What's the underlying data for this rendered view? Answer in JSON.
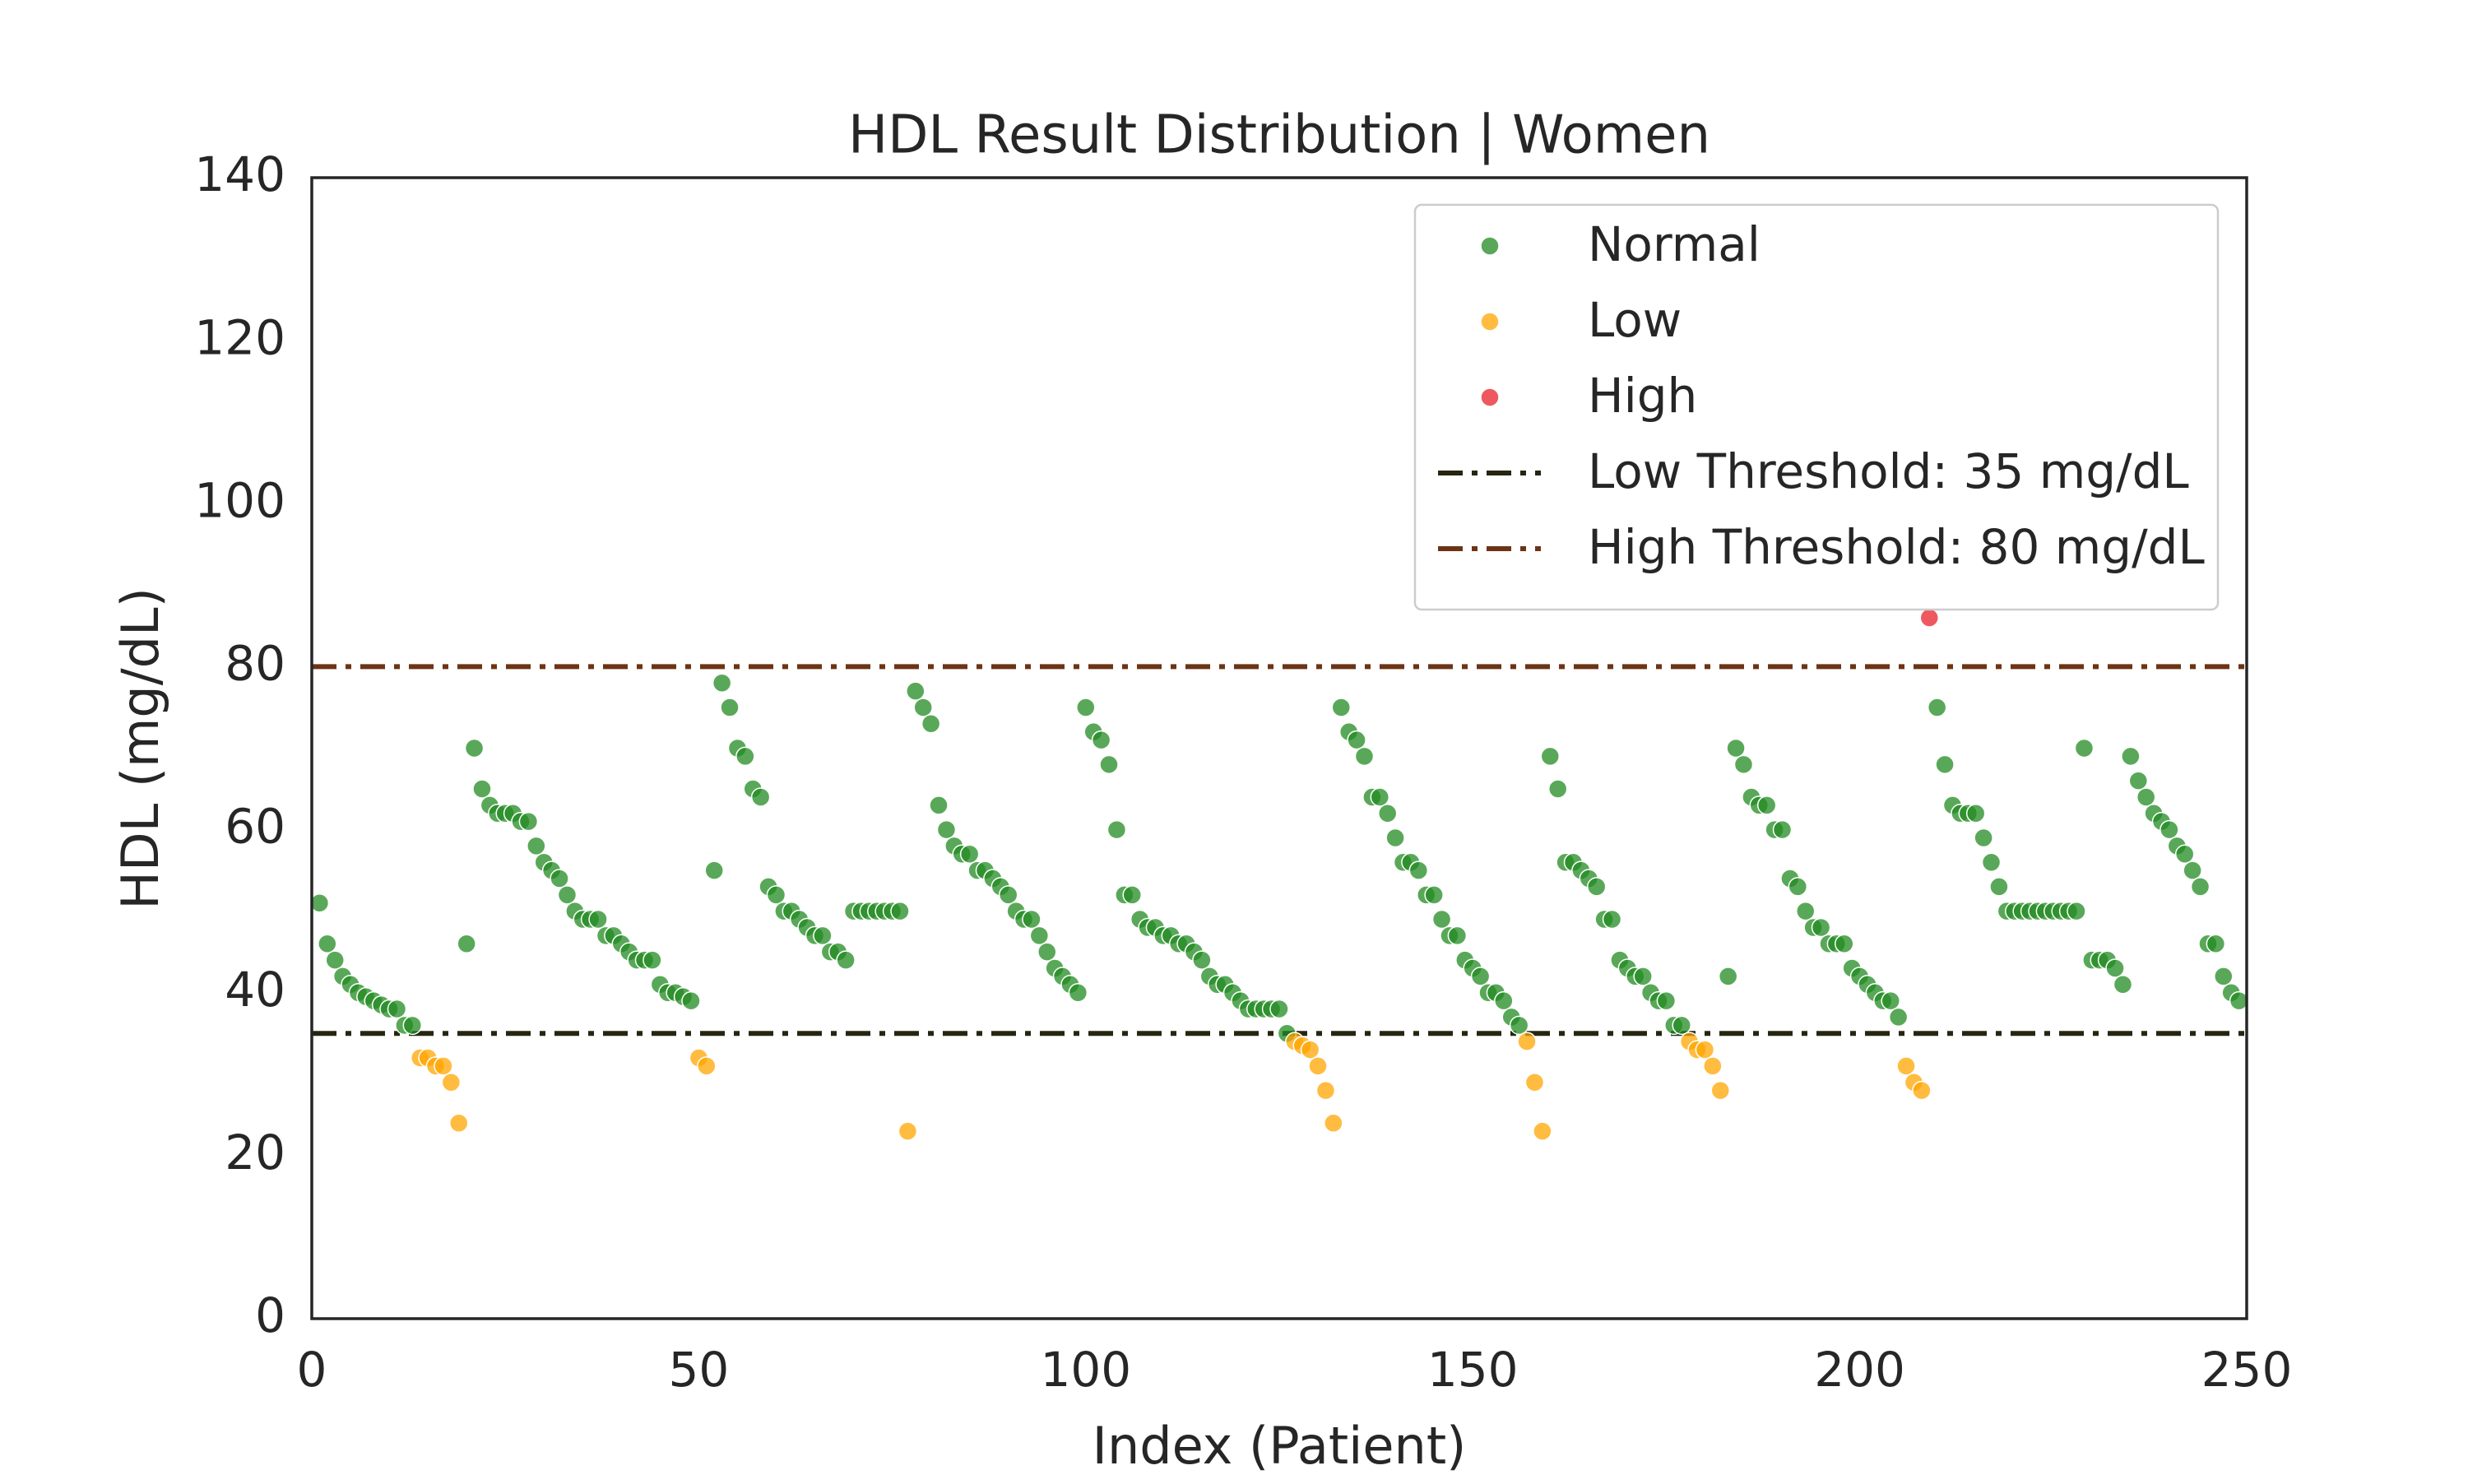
{
  "chart_data": {
    "type": "scatter",
    "title": "HDL Result Distribution | Women",
    "x_label": "Index (Patient)",
    "y_label": "HDL (mg/dL)",
    "xlim": [
      0,
      250
    ],
    "ylim": [
      0,
      140
    ],
    "xticks": [
      0,
      50,
      100,
      150,
      200,
      250
    ],
    "yticks": [
      0,
      20,
      40,
      60,
      80,
      100,
      120,
      140
    ],
    "grid": false,
    "legend": "upper right",
    "series": [
      {
        "name": "Normal",
        "color": "#228b22",
        "x": [
          1,
          2,
          3,
          4,
          5,
          6,
          7,
          8,
          9,
          10,
          11,
          12,
          13,
          20,
          21,
          22,
          23,
          24,
          25,
          26,
          27,
          28,
          29,
          30,
          31,
          32,
          33,
          34,
          35,
          36,
          37,
          38,
          39,
          40,
          41,
          42,
          43,
          44,
          45,
          46,
          47,
          48,
          49,
          52,
          53,
          54,
          55,
          56,
          57,
          58,
          59,
          60,
          61,
          62,
          63,
          64,
          65,
          66,
          67,
          68,
          69,
          70,
          71,
          72,
          73,
          74,
          75,
          76,
          78,
          79,
          80,
          81,
          82,
          83,
          84,
          85,
          86,
          87,
          88,
          89,
          90,
          91,
          92,
          93,
          94,
          95,
          96,
          97,
          98,
          99,
          100,
          101,
          102,
          103,
          104,
          105,
          106,
          107,
          108,
          109,
          110,
          111,
          112,
          113,
          114,
          115,
          116,
          117,
          118,
          119,
          120,
          121,
          122,
          123,
          124,
          125,
          126,
          133,
          134,
          135,
          136,
          137,
          138,
          139,
          140,
          141,
          142,
          143,
          144,
          145,
          146,
          147,
          148,
          149,
          150,
          151,
          152,
          153,
          154,
          155,
          156,
          160,
          161,
          162,
          163,
          164,
          165,
          166,
          167,
          168,
          169,
          170,
          171,
          172,
          173,
          174,
          175,
          176,
          177,
          183,
          184,
          185,
          186,
          187,
          188,
          189,
          190,
          191,
          192,
          193,
          194,
          195,
          196,
          197,
          198,
          199,
          200,
          201,
          202,
          203,
          204,
          205,
          210,
          211,
          212,
          213,
          214,
          215,
          216,
          217,
          218,
          219,
          220,
          221,
          222,
          223,
          224,
          225,
          226,
          227,
          228,
          229,
          230,
          231,
          232,
          233,
          234,
          235,
          236,
          237,
          238,
          239,
          240,
          241,
          242,
          243,
          244,
          245,
          246,
          247,
          248,
          249
        ],
        "values": [
          51,
          46,
          44,
          42,
          41,
          40,
          39.5,
          39,
          38.5,
          38,
          38,
          36,
          36,
          46,
          70,
          65,
          63,
          62,
          62,
          62,
          61,
          61,
          58,
          56,
          55,
          54,
          52,
          50,
          49,
          49,
          49,
          47,
          47,
          46,
          45,
          44,
          44,
          44,
          41,
          40,
          40,
          39.5,
          39,
          55,
          78,
          75,
          70,
          69,
          65,
          64,
          53,
          52,
          50,
          50,
          49,
          48,
          47,
          47,
          45,
          45,
          44,
          50,
          50,
          50,
          50,
          50,
          50,
          50,
          77,
          75,
          73,
          63,
          60,
          58,
          57,
          57,
          55,
          55,
          54,
          53,
          52,
          50,
          49,
          49,
          47,
          45,
          43,
          42,
          41,
          40,
          75,
          72,
          71,
          68,
          60,
          52,
          52,
          49,
          48,
          48,
          47,
          47,
          46,
          46,
          45,
          44,
          42,
          41,
          41,
          40,
          39,
          38,
          38,
          38,
          38,
          38,
          35,
          75,
          72,
          71,
          69,
          64,
          64,
          62,
          59,
          56,
          56,
          55,
          52,
          52,
          49,
          47,
          47,
          44,
          43,
          42,
          40,
          40,
          39,
          37,
          36,
          69,
          65,
          56,
          56,
          55,
          54,
          53,
          49,
          49,
          44,
          43,
          42,
          42,
          40,
          39,
          39,
          36,
          36,
          42,
          70,
          68,
          64,
          63,
          63,
          60,
          60,
          54,
          53,
          50,
          48,
          48,
          46,
          46,
          46,
          43,
          42,
          41,
          40,
          39,
          39,
          37,
          75,
          68,
          63,
          62,
          62,
          62,
          59,
          56,
          53,
          50,
          50,
          50,
          50,
          50,
          50,
          50,
          50,
          50,
          50,
          70,
          44,
          44,
          44,
          43,
          41,
          69,
          66,
          64,
          62,
          61,
          60,
          58,
          57,
          55,
          53,
          46,
          46,
          42,
          40,
          39
        ]
      },
      {
        "name": "Low",
        "color": "#ffa500",
        "x": [
          14,
          15,
          16,
          17,
          18,
          19,
          50,
          51,
          77,
          127,
          128,
          129,
          130,
          131,
          132,
          157,
          158,
          159,
          178,
          179,
          180,
          181,
          182,
          206,
          207,
          208
        ],
        "values": [
          32,
          32,
          31,
          31,
          29,
          24,
          32,
          31,
          23,
          34,
          33.5,
          33,
          31,
          28,
          24,
          34,
          29,
          23,
          34,
          33,
          33,
          31,
          28,
          31,
          29,
          28
        ]
      },
      {
        "name": "High",
        "color": "#e8222b",
        "x": [
          209
        ],
        "values": [
          86
        ]
      }
    ],
    "hlines": [
      {
        "name": "Low Threshold: 35 mg/dL",
        "value": 35,
        "color": "#262611"
      },
      {
        "name": "High Threshold: 80 mg/dL",
        "value": 80,
        "color": "#6b3415"
      }
    ]
  }
}
